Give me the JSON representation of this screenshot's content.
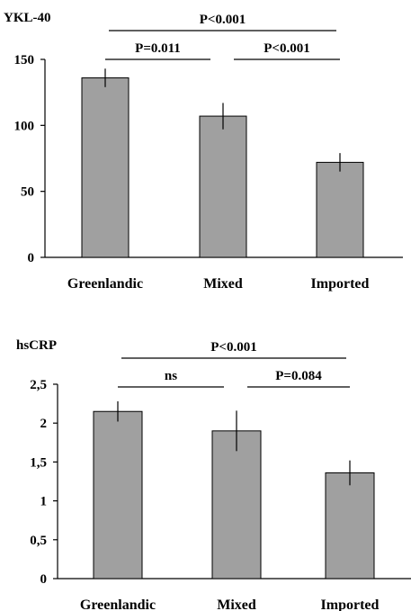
{
  "chart_data": [
    {
      "type": "bar",
      "ylabel": "YKL-40",
      "categories": [
        "Greenlandic",
        "Mixed",
        "Imported"
      ],
      "values": [
        136,
        107,
        72
      ],
      "error": [
        7,
        10,
        7
      ],
      "ylim": [
        0,
        150
      ],
      "yticks": [
        "0",
        "50",
        "100",
        "150"
      ],
      "bar_color": "#a0a0a0",
      "significance": [
        {
          "from": 0,
          "to": 2,
          "label": "P<0.001"
        },
        {
          "from": 0,
          "to": 1,
          "label": "P=0.011"
        },
        {
          "from": 1,
          "to": 2,
          "label": "P<0.001"
        }
      ]
    },
    {
      "type": "bar",
      "ylabel": "hsCRP",
      "categories": [
        "Greenlandic",
        "Mixed",
        "Imported"
      ],
      "values": [
        2.15,
        1.9,
        1.36
      ],
      "error": [
        0.13,
        0.26,
        0.16
      ],
      "ylim": [
        0,
        2.5
      ],
      "yticks": [
        "0",
        "0,5",
        "1",
        "1,5",
        "2",
        "2,5"
      ],
      "bar_color": "#a0a0a0",
      "significance": [
        {
          "from": 0,
          "to": 2,
          "label": "P<0.001"
        },
        {
          "from": 0,
          "to": 1,
          "label": "ns"
        },
        {
          "from": 1,
          "to": 2,
          "label": "P=0.084"
        }
      ]
    }
  ]
}
